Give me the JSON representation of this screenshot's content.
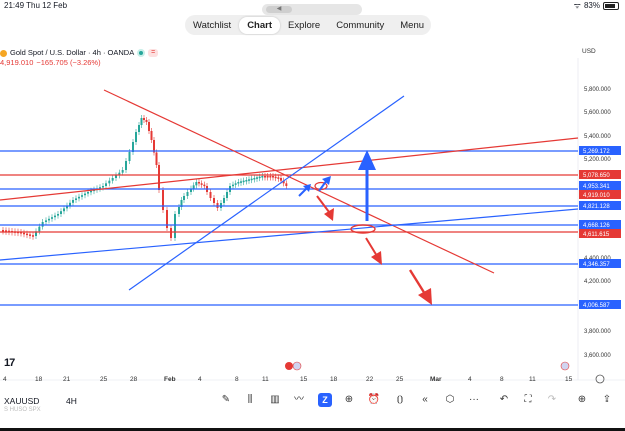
{
  "status_bar": {
    "time": "21:49",
    "date": "Thu 12 Feb",
    "battery": "83%"
  },
  "handle_label": "◀",
  "nav_tabs": [
    {
      "label": "Watchlist",
      "active": false
    },
    {
      "label": "Chart",
      "active": true
    },
    {
      "label": "Explore",
      "active": false
    },
    {
      "label": "Community",
      "active": false
    },
    {
      "label": "Menu",
      "active": false
    }
  ],
  "symbol": {
    "title": "Gold Spot / U.S. Dollar · 4h · OANDA",
    "price": "4,919.010",
    "change": "−165.705 (−3.26%)"
  },
  "currency": "USD",
  "price_axis": {
    "labels": [
      "5,800.000",
      "5,600.000",
      "5,400.000",
      "5,200.000",
      "4,400.000",
      "4,200.000",
      "3,800.000",
      "3,600.000"
    ]
  },
  "price_tags": [
    {
      "text": "5,269.172",
      "color": "#2962ff"
    },
    {
      "text": "5,078.650",
      "color": "#e53935"
    },
    {
      "text": "4,953.341",
      "color": "#2962ff"
    },
    {
      "text": "4,919.010",
      "color": "#e53935"
    },
    {
      "text": "4,821.128",
      "color": "#2962ff"
    },
    {
      "text": "4,668.126",
      "color": "#2962ff"
    },
    {
      "text": "4,611.615",
      "color": "#e53935"
    },
    {
      "text": "4,346.357",
      "color": "#2962ff"
    },
    {
      "text": "4,006.587",
      "color": "#2962ff"
    }
  ],
  "time_axis": {
    "labels": [
      "4",
      "18",
      "21",
      "25",
      "28",
      "Feb",
      "4",
      "8",
      "11",
      "15",
      "18",
      "22",
      "25",
      "Mar",
      "4",
      "8",
      "11",
      "15"
    ]
  },
  "footer": {
    "ticker": "XAUUSD",
    "ticker_sub": "S HUSO SPX",
    "timeframe": "4H"
  },
  "toolbar_icons": [
    "brush-icon",
    "chart-type-icon",
    "bar-replay-icon",
    "trend-tool-icon",
    "z-icon",
    "add-icon",
    "alarm-icon",
    "compare-icon",
    "rewind-icon",
    "layers-icon",
    "more-icon",
    "undo-icon",
    "fullscreen-icon",
    "redo-icon",
    "add-indicator-icon",
    "share-icon"
  ],
  "colors": {
    "accent": "#2962ff",
    "red": "#e53935",
    "green": "#26a69a"
  }
}
